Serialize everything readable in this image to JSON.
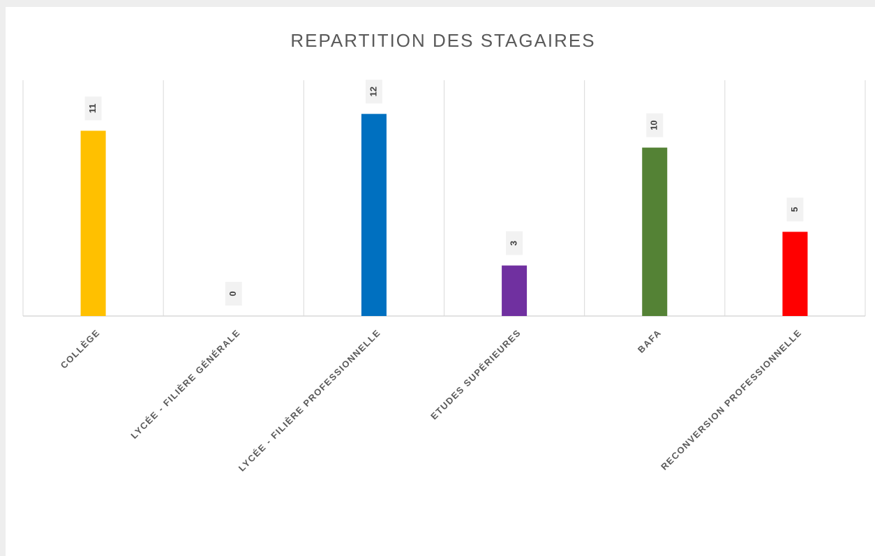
{
  "chart_data": {
    "type": "bar",
    "title": "REPARTITION DES STAGAIRES",
    "categories": [
      "COLLÈGE",
      "LYCÉE - FILIÈRE GÉNÉRALE",
      "LYCÉE - FILIÈRE PROFESSIONNELLE",
      "ETUDES SUPÉRIEURES",
      "BAFA",
      "RECONVERSION PROFESSIONNELLE"
    ],
    "values": [
      11,
      0,
      12,
      3,
      10,
      5
    ],
    "colors": [
      "#ffc000",
      null,
      "#0070c0",
      "#7030a0",
      "#548235",
      "#ff0000"
    ],
    "ylim": [
      0,
      14
    ],
    "grid": true
  }
}
